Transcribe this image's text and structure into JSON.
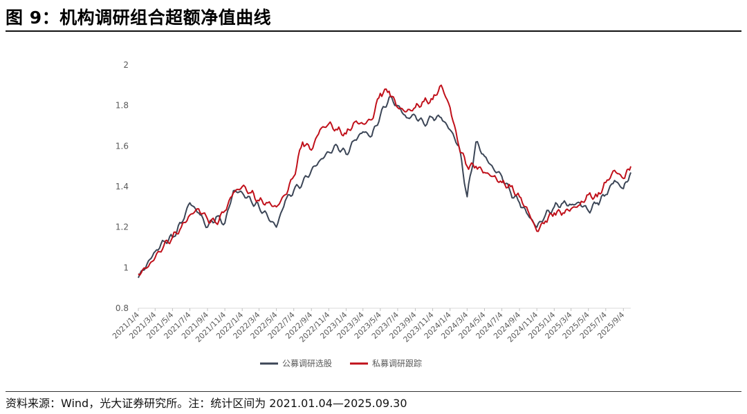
{
  "figure": {
    "title": "图 9：机构调研组合超额净值曲线",
    "source": "资料来源：Wind，光大证券研究所。注：统计区间为 2021.01.04—2025.09.30"
  },
  "chart_data": {
    "type": "line",
    "title": "",
    "xlabel": "",
    "ylabel": "",
    "ylim": [
      0.8,
      2.0
    ],
    "yticks": [
      0.8,
      1,
      1.2,
      1.4,
      1.6,
      1.8,
      2
    ],
    "ytick_labels": [
      "0.8",
      "1",
      "1.2",
      "1.4",
      "1.6",
      "1.8",
      "2"
    ],
    "xtick_labels": [
      "2021/1/4",
      "2021/3/4",
      "2021/5/4",
      "2021/7/4",
      "2021/9/4",
      "2021/11/4",
      "2022/1/4",
      "2022/3/4",
      "2022/5/4",
      "2022/7/4",
      "2022/9/4",
      "2022/11/4",
      "2023/1/4",
      "2023/3/4",
      "2023/5/4",
      "2023/7/4",
      "2023/9/4",
      "2023/11/4",
      "2024/1/4",
      "2024/3/4",
      "2024/5/4",
      "2024/7/4",
      "2024/9/4",
      "2024/11/4",
      "2025/1/4",
      "2025/3/4",
      "2025/5/4",
      "2025/7/4",
      "2025/9/4"
    ],
    "legend_position": "bottom",
    "grid": false,
    "x": [
      "2021-01-04",
      "2021-02-04",
      "2021-03-04",
      "2021-04-04",
      "2021-05-04",
      "2021-06-04",
      "2021-07-04",
      "2021-08-04",
      "2021-09-04",
      "2021-10-04",
      "2021-11-04",
      "2021-12-04",
      "2022-01-04",
      "2022-02-04",
      "2022-03-04",
      "2022-04-04",
      "2022-05-04",
      "2022-06-04",
      "2022-07-04",
      "2022-08-04",
      "2022-09-04",
      "2022-10-04",
      "2022-11-04",
      "2022-12-04",
      "2023-01-04",
      "2023-02-04",
      "2023-03-04",
      "2023-04-04",
      "2023-05-04",
      "2023-06-04",
      "2023-07-04",
      "2023-08-04",
      "2023-09-04",
      "2023-10-04",
      "2023-11-04",
      "2023-12-04",
      "2024-01-04",
      "2024-02-04",
      "2024-03-04",
      "2024-04-04",
      "2024-05-04",
      "2024-06-04",
      "2024-07-04",
      "2024-08-04",
      "2024-09-04",
      "2024-10-04",
      "2024-11-04",
      "2024-12-04",
      "2025-01-04",
      "2025-02-04",
      "2025-03-04",
      "2025-04-04",
      "2025-05-04",
      "2025-06-04",
      "2025-07-04",
      "2025-08-04",
      "2025-09-04",
      "2025-09-30"
    ],
    "series": [
      {
        "name": "公募调研选股",
        "color": "#3b4556",
        "values": [
          0.95,
          1.02,
          1.08,
          1.13,
          1.15,
          1.22,
          1.32,
          1.27,
          1.2,
          1.25,
          1.22,
          1.38,
          1.37,
          1.33,
          1.3,
          1.25,
          1.2,
          1.33,
          1.38,
          1.42,
          1.48,
          1.53,
          1.57,
          1.6,
          1.56,
          1.63,
          1.67,
          1.65,
          1.75,
          1.84,
          1.8,
          1.74,
          1.75,
          1.71,
          1.74,
          1.74,
          1.68,
          1.6,
          1.35,
          1.62,
          1.55,
          1.49,
          1.45,
          1.37,
          1.32,
          1.26,
          1.2,
          1.26,
          1.3,
          1.32,
          1.31,
          1.32,
          1.28,
          1.32,
          1.36,
          1.43,
          1.39,
          1.47
        ]
      },
      {
        "name": "私募调研跟踪",
        "color": "#c0101a",
        "values": [
          0.97,
          1.0,
          1.05,
          1.11,
          1.15,
          1.2,
          1.26,
          1.29,
          1.24,
          1.22,
          1.28,
          1.37,
          1.4,
          1.37,
          1.33,
          1.32,
          1.3,
          1.36,
          1.45,
          1.62,
          1.58,
          1.68,
          1.71,
          1.68,
          1.66,
          1.72,
          1.71,
          1.73,
          1.86,
          1.87,
          1.79,
          1.77,
          1.79,
          1.82,
          1.83,
          1.9,
          1.79,
          1.6,
          1.5,
          1.5,
          1.47,
          1.45,
          1.42,
          1.4,
          1.35,
          1.28,
          1.18,
          1.23,
          1.27,
          1.27,
          1.29,
          1.31,
          1.36,
          1.35,
          1.42,
          1.48,
          1.44,
          1.5
        ]
      }
    ]
  }
}
